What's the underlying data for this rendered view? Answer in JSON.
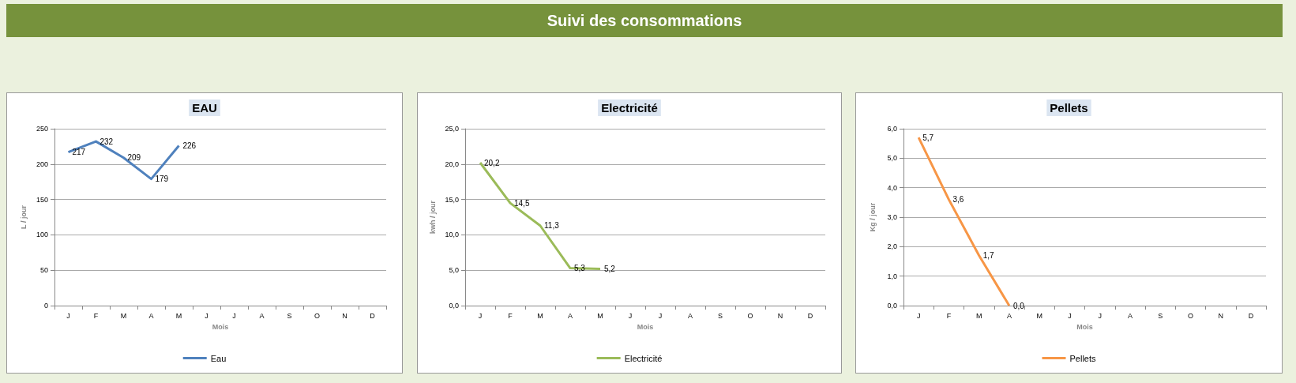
{
  "chart_data": [
    {
      "type": "line",
      "title": "EAU",
      "xlabel": "Mois",
      "ylabel": "L / jour",
      "annotations": [
        "Suivi des consommations"
      ],
      "categories": [
        "J",
        "F",
        "M",
        "A",
        "M",
        "J",
        "J",
        "A",
        "S",
        "O",
        "N",
        "D"
      ],
      "series": [
        {
          "name": "Eau",
          "color": "#4f81bd",
          "values": [
            217,
            232,
            209,
            179,
            226,
            null,
            null,
            null,
            null,
            null,
            null,
            null
          ],
          "value_labels": [
            "217",
            "232",
            "209",
            "179",
            "226",
            null,
            null,
            null,
            null,
            null,
            null,
            null
          ]
        }
      ],
      "ylim": [
        0,
        250
      ],
      "yticks": [
        0,
        50,
        100,
        150,
        200,
        250
      ],
      "grid": "y",
      "legend": "bottom",
      "marker": "none"
    },
    {
      "type": "line",
      "title": "Electricité",
      "xlabel": "Mois",
      "ylabel": "kwh / jour",
      "categories": [
        "J",
        "F",
        "M",
        "A",
        "M",
        "J",
        "J",
        "A",
        "S",
        "O",
        "N",
        "D"
      ],
      "series": [
        {
          "name": "Electricité",
          "color": "#9bbb59",
          "values": [
            20.2,
            14.5,
            11.3,
            5.3,
            5.2,
            null,
            null,
            null,
            null,
            null,
            null,
            null
          ],
          "value_labels": [
            "20,2",
            "14,5",
            "11,3",
            "5,3",
            "5,2",
            null,
            null,
            null,
            null,
            null,
            null,
            null
          ]
        }
      ],
      "ylim": [
        0,
        25
      ],
      "yticks": [
        {
          "value": 0,
          "label": "0,0"
        },
        {
          "value": 5,
          "label": "5,0"
        },
        {
          "value": 10,
          "label": "10,0"
        },
        {
          "value": 15,
          "label": "15,0"
        },
        {
          "value": 20,
          "label": "20,0"
        },
        {
          "value": 25,
          "label": "25,0"
        }
      ],
      "grid": "y",
      "legend": "bottom",
      "marker": "none"
    },
    {
      "type": "line",
      "title": "Pellets",
      "xlabel": "Mois",
      "ylabel": "Kg / jour",
      "categories": [
        "J",
        "F",
        "M",
        "A",
        "M",
        "J",
        "J",
        "A",
        "S",
        "O",
        "N",
        "D"
      ],
      "series": [
        {
          "name": "Pellets",
          "color": "#f79646",
          "values": [
            5.7,
            3.6,
            1.7,
            0.0,
            null,
            null,
            null,
            null,
            null,
            null,
            null,
            null
          ],
          "value_labels": [
            "5,7",
            "3,6",
            "1,7",
            "0,0",
            null,
            null,
            null,
            null,
            null,
            null,
            null,
            null
          ]
        }
      ],
      "ylim": [
        0,
        6
      ],
      "yticks": [
        {
          "value": 0,
          "label": "0,0"
        },
        {
          "value": 1,
          "label": "1,0"
        },
        {
          "value": 2,
          "label": "2,0"
        },
        {
          "value": 3,
          "label": "3,0"
        },
        {
          "value": 4,
          "label": "4,0"
        },
        {
          "value": 5,
          "label": "5,0"
        },
        {
          "value": 6,
          "label": "6,0"
        }
      ],
      "grid": "y",
      "legend": "bottom",
      "marker": "none"
    }
  ]
}
